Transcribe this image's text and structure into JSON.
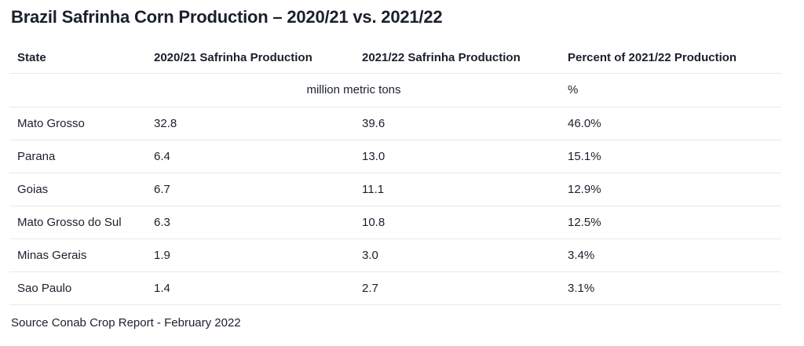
{
  "title": "Brazil Safrinha Corn Production – 2020/21 vs. 2021/22",
  "table": {
    "headers": [
      "State",
      "2020/21 Safrinha Production",
      "2021/22 Safrinha Production",
      "Percent of 2021/22 Production"
    ],
    "units": {
      "production": "million metric tons",
      "percent": "%"
    },
    "rows": [
      {
        "state": "Mato Grosso",
        "prod_2020_21": "32.8",
        "prod_2021_22": "39.6",
        "percent": "46.0%"
      },
      {
        "state": "Parana",
        "prod_2020_21": "6.4",
        "prod_2021_22": "13.0",
        "percent": "15.1%"
      },
      {
        "state": "Goias",
        "prod_2020_21": "6.7",
        "prod_2021_22": "11.1",
        "percent": "12.9%"
      },
      {
        "state": "Mato Grosso do Sul",
        "prod_2020_21": "6.3",
        "prod_2021_22": "10.8",
        "percent": "12.5%"
      },
      {
        "state": "Minas Gerais",
        "prod_2020_21": "1.9",
        "prod_2021_22": "3.0",
        "percent": "3.4%"
      },
      {
        "state": "Sao Paulo",
        "prod_2020_21": "1.4",
        "prod_2021_22": "2.7",
        "percent": "3.1%"
      }
    ]
  },
  "source": "Source Conab Crop Report - February 2022",
  "colors": {
    "text": "#1a202c",
    "divider": "#e6e9ee",
    "background": "#ffffff"
  },
  "chart_data": {
    "type": "table",
    "title": "Brazil Safrinha Corn Production – 2020/21 vs. 2021/22",
    "columns": [
      "State",
      "2020/21 Safrinha Production (million metric tons)",
      "2021/22 Safrinha Production (million metric tons)",
      "Percent of 2021/22 Production (%)"
    ],
    "rows": [
      [
        "Mato Grosso",
        32.8,
        39.6,
        46.0
      ],
      [
        "Parana",
        6.4,
        13.0,
        15.1
      ],
      [
        "Goias",
        6.7,
        11.1,
        12.9
      ],
      [
        "Mato Grosso do Sul",
        6.3,
        10.8,
        12.5
      ],
      [
        "Minas Gerais",
        1.9,
        3.0,
        3.4
      ],
      [
        "Sao Paulo",
        1.4,
        2.7,
        3.1
      ]
    ],
    "source": "Source Conab Crop Report - February 2022"
  }
}
